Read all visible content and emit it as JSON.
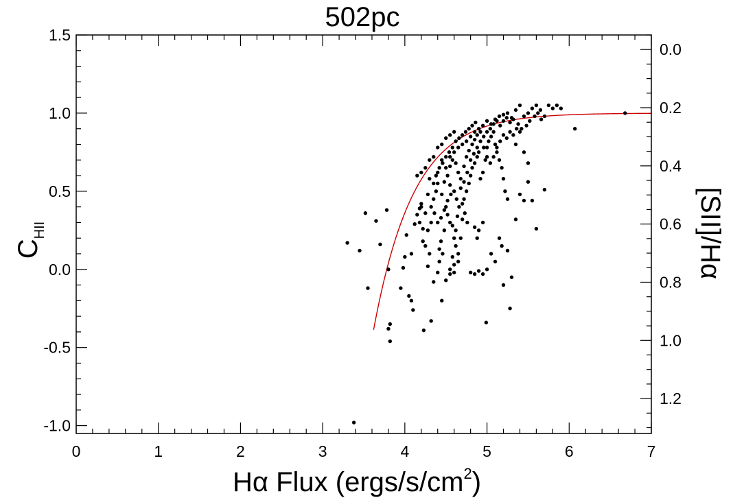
{
  "chart_data": {
    "type": "scatter",
    "title": "502pc",
    "xlabel": {
      "main": "Hα Flux (ergs/s/cm",
      "sup": "2",
      "end": ")"
    },
    "ylabel": {
      "main": "C",
      "sub": "HII"
    },
    "y2label": "[SII]/Hα",
    "xlim": [
      0,
      7
    ],
    "ylim": [
      -1.05,
      1.5
    ],
    "y2lim": [
      1.32,
      -0.05
    ],
    "x_ticks": [
      {
        "value": 0,
        "label": "0"
      },
      {
        "value": 1,
        "label": "1"
      },
      {
        "value": 2,
        "label": "2"
      },
      {
        "value": 3,
        "label": "3"
      },
      {
        "value": 4,
        "label": "4"
      },
      {
        "value": 5,
        "label": "5"
      },
      {
        "value": 6,
        "label": "6"
      },
      {
        "value": 7,
        "label": "7"
      }
    ],
    "y_ticks": [
      {
        "value": 1.5,
        "label": "1.5"
      },
      {
        "value": 1.0,
        "label": "1.0"
      },
      {
        "value": 0.5,
        "label": "0.5"
      },
      {
        "value": 0.0,
        "label": "0.0"
      },
      {
        "value": -0.5,
        "label": "-0.5"
      },
      {
        "value": -1.0,
        "label": "-1.0"
      }
    ],
    "y2_ticks": [
      {
        "value": 0.0,
        "label": "0.0"
      },
      {
        "value": 0.2,
        "label": "0.2"
      },
      {
        "value": 0.4,
        "label": "0.4"
      },
      {
        "value": 0.6,
        "label": "0.6"
      },
      {
        "value": 0.8,
        "label": "0.8"
      },
      {
        "value": 1.0,
        "label": "1.0"
      },
      {
        "value": 1.2,
        "label": "1.2"
      }
    ],
    "fit_curve": {
      "color": "#cc0000",
      "form": "C = 1 - exp(-(x - x0)/s)",
      "x0": 3.78,
      "s": 0.49,
      "x_range": [
        3.62,
        7.0
      ]
    },
    "points": [
      [
        3.3,
        0.17
      ],
      [
        3.38,
        -0.98
      ],
      [
        3.45,
        0.12
      ],
      [
        3.52,
        0.36
      ],
      [
        3.55,
        -0.12
      ],
      [
        3.65,
        0.31
      ],
      [
        3.7,
        0.16
      ],
      [
        3.78,
        0.38
      ],
      [
        3.8,
        0.0
      ],
      [
        3.82,
        -0.35
      ],
      [
        3.8,
        -0.38
      ],
      [
        3.82,
        -0.46
      ],
      [
        3.95,
        -0.12
      ],
      [
        3.98,
        0.01
      ],
      [
        4.0,
        0.08
      ],
      [
        4.02,
        0.22
      ],
      [
        4.05,
        -0.17
      ],
      [
        4.08,
        -0.2
      ],
      [
        4.1,
        -0.26
      ],
      [
        4.08,
        0.1
      ],
      [
        4.12,
        0.29
      ],
      [
        4.15,
        0.35
      ],
      [
        4.18,
        0.39
      ],
      [
        4.2,
        0.42
      ],
      [
        4.22,
        0.18
      ],
      [
        4.25,
        0.15
      ],
      [
        4.28,
        0.25
      ],
      [
        4.3,
        0.1
      ],
      [
        4.32,
        0.3
      ],
      [
        4.35,
        0.45
      ],
      [
        4.38,
        0.5
      ],
      [
        4.4,
        0.55
      ],
      [
        4.15,
        0.6
      ],
      [
        4.2,
        0.62
      ],
      [
        4.3,
        0.58
      ],
      [
        4.4,
        0.62
      ],
      [
        4.45,
        0.7
      ],
      [
        4.5,
        0.65
      ],
      [
        4.55,
        0.72
      ],
      [
        4.6,
        0.75
      ],
      [
        4.65,
        0.78
      ],
      [
        4.7,
        0.8
      ],
      [
        4.75,
        0.82
      ],
      [
        4.8,
        0.85
      ],
      [
        4.85,
        0.88
      ],
      [
        4.9,
        0.9
      ],
      [
        4.95,
        0.92
      ],
      [
        5.0,
        0.95
      ],
      [
        5.05,
        0.93
      ],
      [
        5.1,
        0.96
      ],
      [
        5.15,
        0.98
      ],
      [
        5.2,
        0.99
      ],
      [
        5.25,
        1.0
      ],
      [
        5.3,
        0.97
      ],
      [
        5.35,
        1.02
      ],
      [
        5.4,
        1.05
      ],
      [
        5.45,
        0.98
      ],
      [
        5.5,
        1.0
      ],
      [
        5.55,
        1.03
      ],
      [
        5.6,
        1.05
      ],
      [
        5.65,
        1.02
      ],
      [
        5.7,
        0.98
      ],
      [
        5.75,
        1.05
      ],
      [
        5.8,
        1.03
      ],
      [
        5.85,
        1.05
      ],
      [
        5.9,
        1.03
      ],
      [
        6.07,
        0.9
      ],
      [
        6.68,
        1.0
      ],
      [
        4.5,
        0.4
      ],
      [
        4.52,
        0.35
      ],
      [
        4.55,
        0.3
      ],
      [
        4.58,
        0.28
      ],
      [
        4.6,
        0.2
      ],
      [
        4.62,
        0.15
      ],
      [
        4.48,
        0.25
      ],
      [
        4.46,
        0.1
      ],
      [
        4.44,
        0.18
      ],
      [
        4.42,
        0.05
      ],
      [
        4.4,
        -0.02
      ],
      [
        4.45,
        -0.2
      ],
      [
        4.35,
        -0.08
      ],
      [
        4.32,
        -0.33
      ],
      [
        4.23,
        -0.39
      ],
      [
        4.28,
        0.02
      ],
      [
        4.5,
        -0.07
      ],
      [
        4.55,
        -0.03
      ],
      [
        4.6,
        0.03
      ],
      [
        4.65,
        0.1
      ],
      [
        4.68,
        0.2
      ],
      [
        4.7,
        0.32
      ],
      [
        4.72,
        0.45
      ],
      [
        4.75,
        0.5
      ],
      [
        4.78,
        0.55
      ],
      [
        4.8,
        0.6
      ],
      [
        4.82,
        0.65
      ],
      [
        4.85,
        0.68
      ],
      [
        4.88,
        0.72
      ],
      [
        4.9,
        0.75
      ],
      [
        4.92,
        0.58
      ],
      [
        4.95,
        0.62
      ],
      [
        4.98,
        0.7
      ],
      [
        5.0,
        0.78
      ],
      [
        5.02,
        0.82
      ],
      [
        5.05,
        0.85
      ],
      [
        5.08,
        0.88
      ],
      [
        5.1,
        0.8
      ],
      [
        5.12,
        0.75
      ],
      [
        5.15,
        0.7
      ],
      [
        5.18,
        0.65
      ],
      [
        5.2,
        0.58
      ],
      [
        5.22,
        0.5
      ],
      [
        5.25,
        0.45
      ],
      [
        4.8,
        -0.02
      ],
      [
        4.85,
        -0.03
      ],
      [
        4.9,
        -0.01
      ],
      [
        4.95,
        -0.03
      ],
      [
        5.0,
        0.0
      ],
      [
        4.99,
        -0.34
      ],
      [
        4.9,
        0.25
      ],
      [
        4.85,
        0.27
      ],
      [
        4.88,
        0.2
      ],
      [
        4.95,
        0.3
      ],
      [
        5.05,
        0.1
      ],
      [
        5.1,
        0.05
      ],
      [
        5.15,
        0.2
      ],
      [
        5.18,
        0.15
      ],
      [
        5.2,
        -0.1
      ],
      [
        5.25,
        0.12
      ],
      [
        5.3,
        -0.05
      ],
      [
        5.28,
        -0.25
      ],
      [
        5.35,
        0.32
      ],
      [
        5.4,
        0.48
      ],
      [
        5.45,
        0.44
      ],
      [
        5.5,
        0.56
      ],
      [
        5.55,
        0.44
      ],
      [
        5.6,
        0.26
      ],
      [
        5.7,
        0.51
      ],
      [
        5.45,
        0.75
      ],
      [
        5.5,
        0.68
      ],
      [
        5.35,
        0.8
      ],
      [
        4.45,
        0.48
      ],
      [
        4.48,
        0.56
      ],
      [
        4.52,
        0.6
      ],
      [
        4.55,
        0.66
      ],
      [
        4.58,
        0.7
      ],
      [
        4.62,
        0.68
      ],
      [
        4.65,
        0.62
      ],
      [
        4.68,
        0.58
      ],
      [
        4.72,
        0.66
      ],
      [
        4.75,
        0.72
      ],
      [
        4.78,
        0.76
      ],
      [
        4.82,
        0.8
      ],
      [
        4.85,
        0.83
      ],
      [
        4.88,
        0.86
      ],
      [
        4.92,
        0.88
      ],
      [
        4.96,
        0.85
      ],
      [
        5.0,
        0.88
      ],
      [
        5.04,
        0.9
      ],
      [
        5.08,
        0.93
      ],
      [
        5.12,
        0.95
      ],
      [
        5.16,
        0.92
      ],
      [
        5.2,
        0.95
      ],
      [
        5.24,
        0.97
      ],
      [
        5.28,
        0.94
      ],
      [
        5.32,
        0.96
      ],
      [
        5.38,
        0.93
      ],
      [
        5.42,
        0.9
      ],
      [
        5.48,
        0.92
      ],
      [
        5.52,
        0.95
      ],
      [
        5.58,
        0.98
      ],
      [
        5.62,
        1.0
      ],
      [
        5.66,
        0.96
      ],
      [
        4.35,
        0.55
      ],
      [
        4.38,
        0.6
      ],
      [
        4.42,
        0.65
      ],
      [
        4.46,
        0.68
      ],
      [
        4.5,
        0.72
      ],
      [
        4.54,
        0.75
      ],
      [
        4.58,
        0.78
      ],
      [
        4.62,
        0.82
      ],
      [
        4.66,
        0.84
      ],
      [
        4.7,
        0.86
      ],
      [
        4.74,
        0.88
      ],
      [
        4.78,
        0.9
      ],
      [
        4.82,
        0.92
      ],
      [
        4.86,
        0.94
      ],
      [
        4.55,
        0.54
      ],
      [
        4.6,
        0.5
      ],
      [
        4.63,
        0.45
      ],
      [
        4.66,
        0.4
      ],
      [
        4.7,
        0.42
      ],
      [
        4.73,
        0.36
      ],
      [
        4.76,
        0.3
      ],
      [
        4.68,
        0.52
      ],
      [
        4.72,
        0.56
      ],
      [
        4.76,
        0.62
      ],
      [
        4.8,
        0.7
      ],
      [
        4.84,
        0.74
      ],
      [
        4.88,
        0.78
      ],
      [
        4.92,
        0.82
      ],
      [
        4.96,
        0.78
      ],
      [
        5.0,
        0.72
      ],
      [
        5.04,
        0.68
      ],
      [
        5.08,
        0.72
      ],
      [
        5.12,
        0.78
      ],
      [
        5.16,
        0.82
      ],
      [
        5.2,
        0.86
      ],
      [
        5.24,
        0.84
      ],
      [
        5.28,
        0.88
      ],
      [
        5.32,
        0.86
      ],
      [
        5.36,
        0.9
      ],
      [
        5.4,
        0.88
      ],
      [
        4.3,
        0.7
      ],
      [
        4.35,
        0.72
      ],
      [
        4.4,
        0.78
      ],
      [
        4.45,
        0.8
      ],
      [
        4.5,
        0.84
      ],
      [
        4.55,
        0.86
      ],
      [
        4.6,
        0.88
      ],
      [
        4.25,
        0.65
      ],
      [
        4.28,
        0.48
      ],
      [
        4.32,
        0.4
      ],
      [
        4.36,
        0.36
      ],
      [
        4.4,
        0.3
      ],
      [
        4.44,
        0.33
      ],
      [
        4.48,
        0.38
      ],
      [
        4.52,
        0.44
      ],
      [
        4.56,
        0.48
      ],
      [
        4.2,
        0.4
      ],
      [
        4.25,
        0.36
      ],
      [
        4.18,
        0.3
      ],
      [
        4.22,
        0.26
      ],
      [
        4.55,
        0.0
      ],
      [
        4.6,
        -0.02
      ],
      [
        4.65,
        0.05
      ],
      [
        4.42,
        0.13
      ],
      [
        4.62,
        0.25
      ],
      [
        4.64,
        0.34
      ],
      [
        4.58,
        0.08
      ]
    ]
  }
}
